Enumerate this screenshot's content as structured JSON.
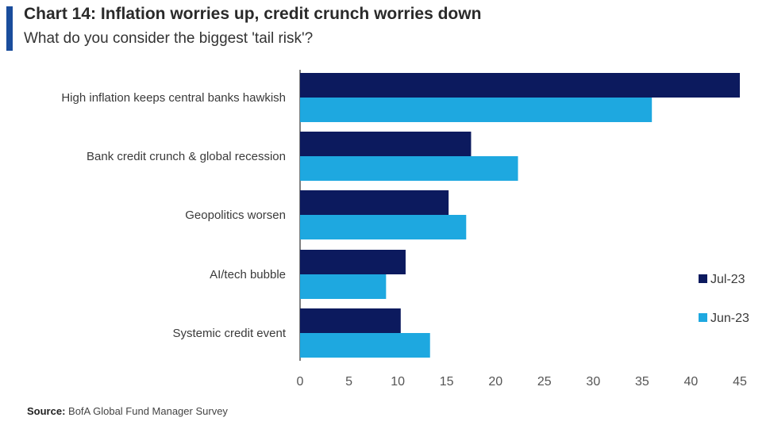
{
  "header": {
    "title": "Chart 14: Inflation worries up, credit crunch worries down",
    "subtitle": "What do you consider the biggest 'tail risk'?"
  },
  "footer": {
    "source_label": "Source:",
    "source_text": "BofA Global Fund Manager Survey"
  },
  "colors": {
    "jul": "#0c1a5e",
    "jun": "#1ea8e0",
    "accent": "#1a4d9c"
  },
  "chart_data": {
    "type": "bar",
    "orientation": "horizontal",
    "categories": [
      "High inflation keeps central banks hawkish",
      "Bank credit crunch & global recession",
      "Geopolitics worsen",
      "AI/tech bubble",
      "Systemic credit event"
    ],
    "series": [
      {
        "name": "Jul-23",
        "values": [
          45,
          17.5,
          15.2,
          10.8,
          10.3
        ]
      },
      {
        "name": "Jun-23",
        "values": [
          36,
          22.3,
          17,
          8.8,
          13.3
        ]
      }
    ],
    "xlim": [
      0,
      45
    ],
    "xticks": [
      0,
      5,
      10,
      15,
      20,
      25,
      30,
      35,
      40,
      45
    ],
    "legend": "right",
    "grid": false
  }
}
